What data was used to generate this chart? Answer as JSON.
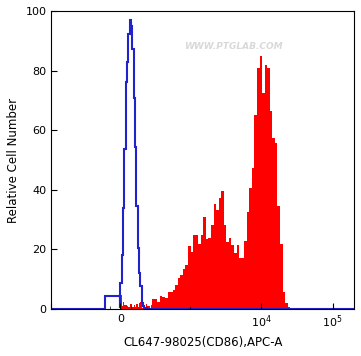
{
  "title": "",
  "xlabel": "CL647-98025(CD86),APC-A",
  "ylabel": "Relative Cell Number",
  "ylim": [
    0,
    100
  ],
  "yticks": [
    0,
    20,
    40,
    60,
    80,
    100
  ],
  "watermark": "WWW.PTGLAB.COM",
  "bg_color": "#ffffff",
  "plot_bg_color": "#ffffff",
  "blue_color": "#2222cc",
  "red_color": "#ff0000",
  "xlabel_fontsize": 8.5,
  "ylabel_fontsize": 8.5,
  "tick_fontsize": 8,
  "linthresh": 300,
  "linscale": 0.4
}
